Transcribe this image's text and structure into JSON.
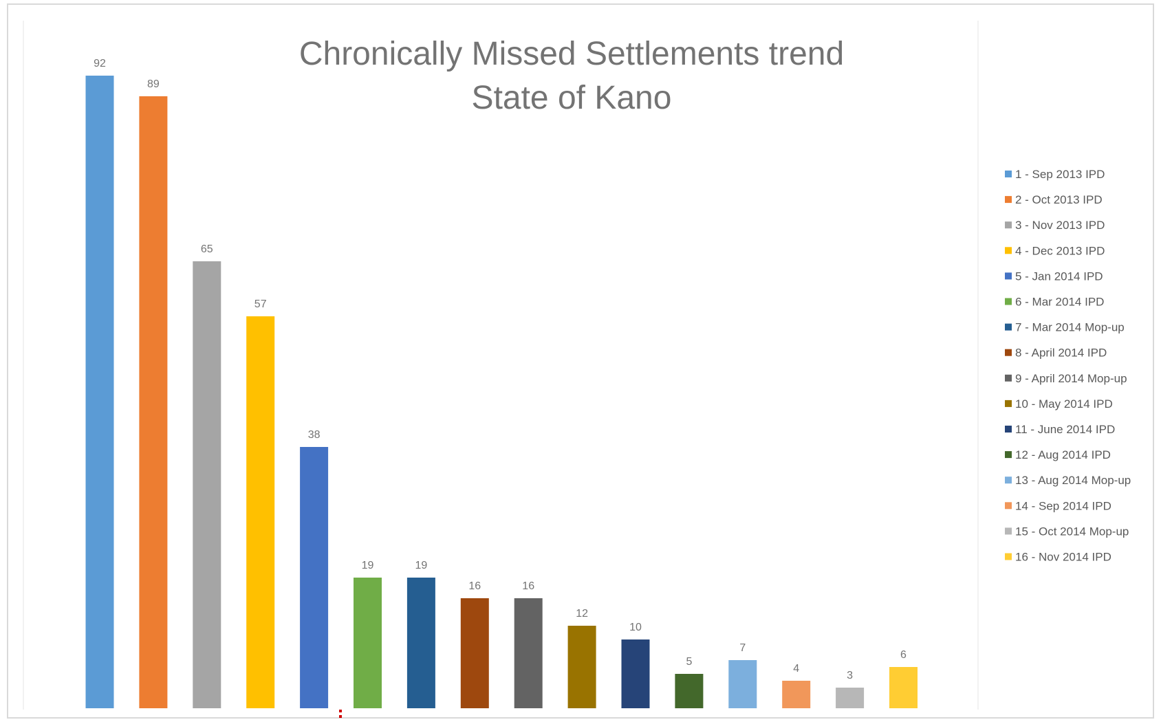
{
  "chart_data": {
    "type": "bar",
    "title": [
      "Chronically Missed Settlements trend",
      "State of Kano"
    ],
    "xlabel": "",
    "ylabel": "",
    "ylim": [
      0,
      92
    ],
    "grid": false,
    "legend_position": "right",
    "categories": [
      "1 - Sep 2013 IPD",
      "2 - Oct 2013 IPD",
      "3 - Nov 2013 IPD",
      "4 - Dec 2013 IPD",
      "5 - Jan 2014 IPD",
      "6 - Mar 2014 IPD",
      "7 - Mar 2014 Mop-up",
      "8 - April 2014 IPD",
      "9 - April 2014 Mop-up",
      "10 - May 2014 IPD",
      "11 - June 2014 IPD",
      "12 - Aug 2014 IPD",
      "13 - Aug 2014 Mop-up",
      "14 - Sep 2014 IPD",
      "15 - Oct 2014 Mop-up",
      "16 - Nov 2014 IPD"
    ],
    "values": [
      92,
      89,
      65,
      57,
      38,
      19,
      19,
      16,
      16,
      12,
      10,
      5,
      7,
      4,
      3,
      6
    ],
    "colors": [
      "#5b9bd5",
      "#ed7d31",
      "#a5a5a5",
      "#ffc000",
      "#4472c4",
      "#70ad47",
      "#255e91",
      "#9e480e",
      "#636363",
      "#997300",
      "#264478",
      "#43682b",
      "#7cafdd",
      "#f1975a",
      "#b7b7b7",
      "#ffcd33"
    ]
  }
}
